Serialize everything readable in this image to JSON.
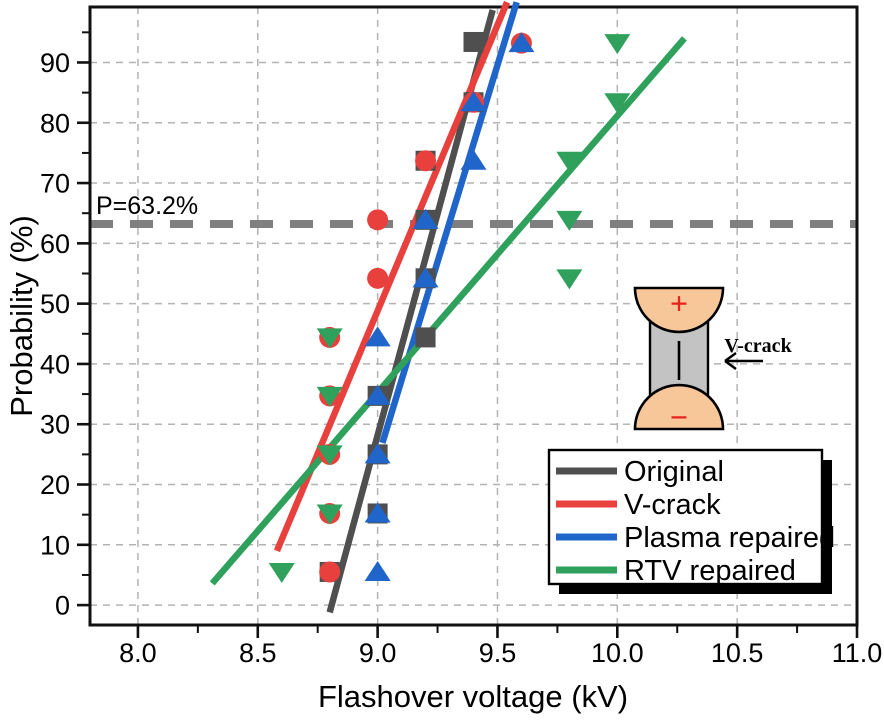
{
  "chart_data": {
    "type": "scatter",
    "xlabel": "Flashover voltage (kV)",
    "ylabel": "Probability (%)",
    "xlim": [
      7.8,
      11.0
    ],
    "ylim": [
      -3.3,
      99.2
    ],
    "x_major_ticks": [
      8.0,
      8.5,
      9.0,
      9.5,
      10.0,
      10.5,
      11.0
    ],
    "x_tick_labels": [
      "8.0",
      "8.5",
      "9.0",
      "9.5",
      "10.0",
      "10.5",
      "11.0"
    ],
    "x_minor_ticks": [
      8.25,
      8.75,
      9.25,
      9.75,
      10.25,
      10.75
    ],
    "y_major_ticks": [
      0,
      10,
      20,
      30,
      40,
      50,
      60,
      70,
      80,
      90
    ],
    "y_minor_ticks": [
      5,
      15,
      25,
      35,
      45,
      55,
      65,
      75,
      85,
      95
    ],
    "grid": true,
    "grid_color": "#b3b3b3",
    "p_line": {
      "label": "P=63.2%",
      "value": 63.2,
      "color": "#7f7f7f"
    },
    "series": [
      {
        "name": "Original",
        "color": "#4f4f4f",
        "marker": "square",
        "points": [
          [
            8.8,
            5.5
          ],
          [
            9.0,
            15.2
          ],
          [
            9.0,
            25.0
          ],
          [
            9.0,
            34.7
          ],
          [
            9.2,
            44.4
          ],
          [
            9.2,
            54.2
          ],
          [
            9.2,
            63.9
          ],
          [
            9.2,
            73.7
          ],
          [
            9.4,
            83.4
          ],
          [
            9.4,
            93.4
          ]
        ],
        "fit": [
          [
            8.8,
            -1.2
          ],
          [
            9.48,
            98.7
          ]
        ]
      },
      {
        "name": "V-crack",
        "color": "#e8403c",
        "marker": "circle",
        "points": [
          [
            8.8,
            5.5
          ],
          [
            8.8,
            15.2
          ],
          [
            8.8,
            25.0
          ],
          [
            8.8,
            34.7
          ],
          [
            8.8,
            44.4
          ],
          [
            9.0,
            54.2
          ],
          [
            9.0,
            63.9
          ],
          [
            9.2,
            73.7
          ],
          [
            9.4,
            83.4
          ],
          [
            9.6,
            93.2
          ]
        ],
        "fit": [
          [
            8.58,
            9.0
          ],
          [
            9.54,
            100.0
          ]
        ]
      },
      {
        "name": "Plasma repaired",
        "color": "#2065c9",
        "marker": "triangle-up",
        "points": [
          [
            9.0,
            5.5
          ],
          [
            9.0,
            15.2
          ],
          [
            9.0,
            25.0
          ],
          [
            9.0,
            34.7
          ],
          [
            9.0,
            44.4
          ],
          [
            9.2,
            54.2
          ],
          [
            9.2,
            63.9
          ],
          [
            9.4,
            73.7
          ],
          [
            9.4,
            83.4
          ],
          [
            9.6,
            93.2
          ]
        ],
        "fit": [
          [
            9.02,
            26.9
          ],
          [
            9.58,
            100.0
          ]
        ]
      },
      {
        "name": "RTV repaired",
        "color": "#2fa15c",
        "marker": "triangle-down",
        "points": [
          [
            8.6,
            5.5
          ],
          [
            8.8,
            15.2
          ],
          [
            8.8,
            25.0
          ],
          [
            8.8,
            34.7
          ],
          [
            8.8,
            44.4
          ],
          [
            9.8,
            54.2
          ],
          [
            9.8,
            63.9
          ],
          [
            9.8,
            73.7
          ],
          [
            10.0,
            83.4
          ],
          [
            10.0,
            93.2
          ]
        ],
        "fit": [
          [
            8.31,
            3.6
          ],
          [
            10.28,
            94.0
          ]
        ]
      }
    ],
    "legend": {
      "position": "bottom-right",
      "entries": [
        "Original",
        "V-crack",
        "Plasma repaired",
        "RTV repaired"
      ]
    },
    "inset": {
      "plus": "+",
      "minus": "−",
      "label": "V-crack",
      "electrode_color": "#f7c79a",
      "sample_color": "#c3c3c3"
    }
  }
}
